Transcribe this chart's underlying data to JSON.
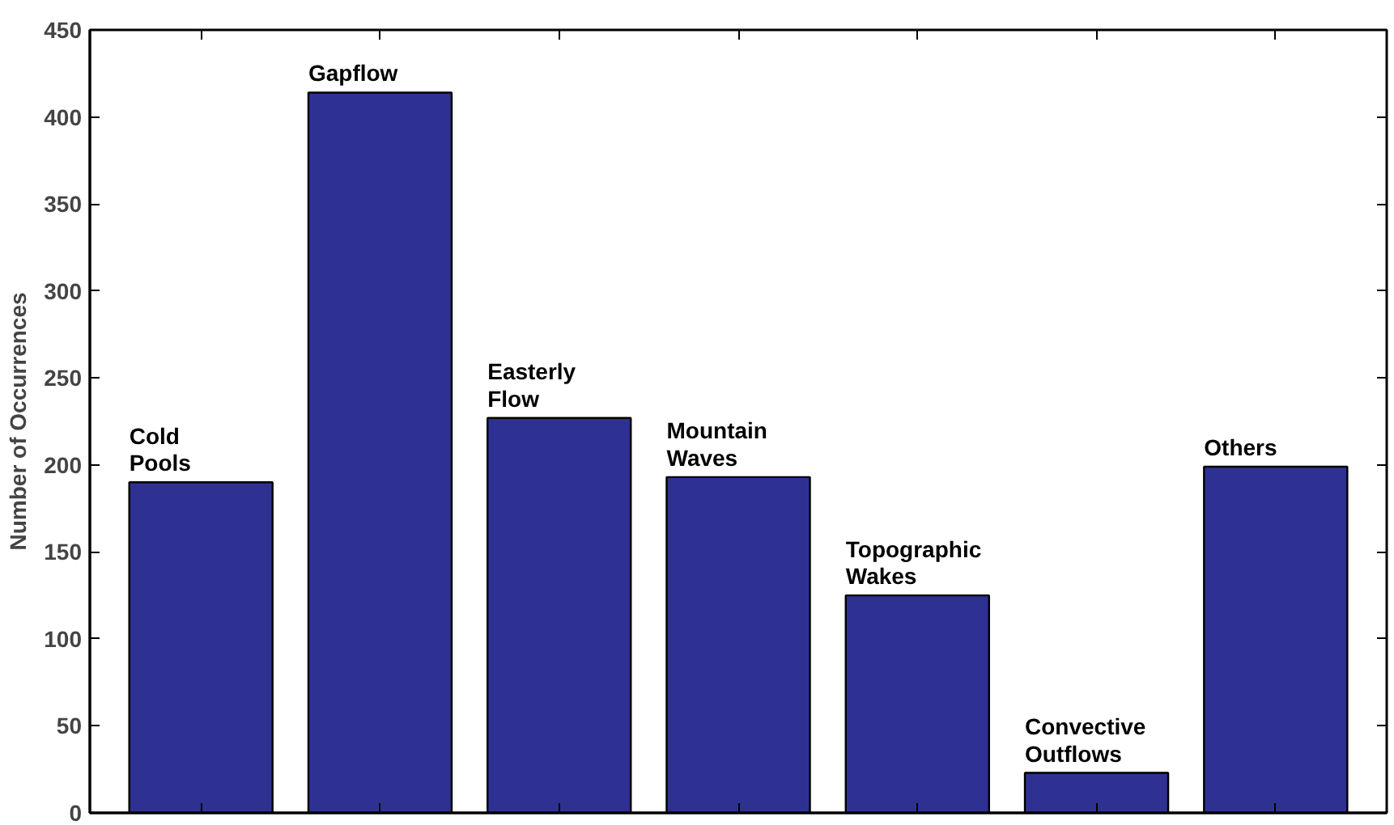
{
  "chart_data": {
    "type": "bar",
    "ylabel": "Number of Occurrences",
    "categories": [
      "Cold Pools",
      "Gapflow",
      "Easterly Flow",
      "Mountain Waves",
      "Topographic Wakes",
      "Convective Outflows",
      "Others"
    ],
    "values": [
      190,
      414,
      227,
      193,
      125,
      23,
      199
    ],
    "color": "#2e3192",
    "ylim": [
      0,
      450
    ],
    "yticks": [
      0,
      50,
      100,
      150,
      200,
      250,
      300,
      350,
      400,
      450
    ],
    "grid": false,
    "tick_labels": "y"
  }
}
